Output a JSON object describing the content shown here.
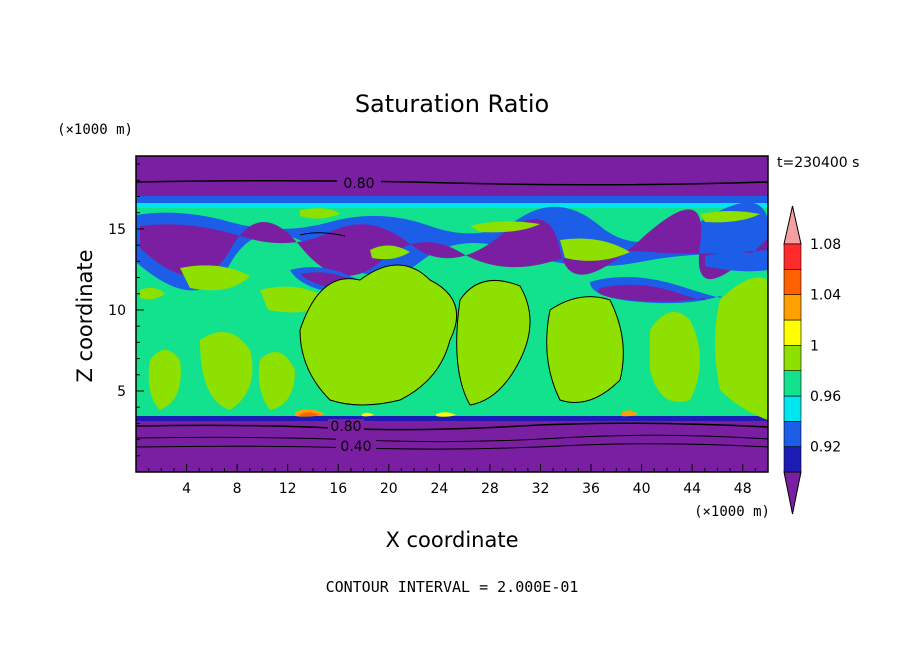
{
  "chart_data": {
    "type": "heatmap",
    "title": "Saturation Ratio",
    "xlabel": "X coordinate",
    "ylabel": "Z coordinate",
    "x_unit": "(×1000 m)",
    "y_unit": "(×1000 m)",
    "time_label": "t=230400 s",
    "footer": "CONTOUR INTERVAL = 2.000E-01",
    "xlim": [
      0,
      50
    ],
    "ylim": [
      0,
      19.5
    ],
    "x_ticks": [
      "4",
      "8",
      "12",
      "16",
      "20",
      "24",
      "28",
      "32",
      "36",
      "40",
      "44",
      "48"
    ],
    "y_ticks": [
      "5",
      "10",
      "15"
    ],
    "contour_labels": [
      "0.80",
      "0.80",
      "0.40"
    ],
    "colorbar": {
      "levels": [
        0.9,
        0.92,
        0.94,
        0.96,
        0.98,
        1.0,
        1.02,
        1.04,
        1.06,
        1.08,
        1.1
      ],
      "tick_labels": [
        "0.92",
        "0.96",
        "1",
        "1.04",
        "1.08"
      ],
      "colors": [
        "#7a1fa2",
        "#1c1cb4",
        "#1c5ee8",
        "#00e6ee",
        "#12e28e",
        "#8ee000",
        "#ffff00",
        "#ffa000",
        "#ff6000",
        "#ff2a2a",
        "#f4a0a0"
      ]
    }
  }
}
